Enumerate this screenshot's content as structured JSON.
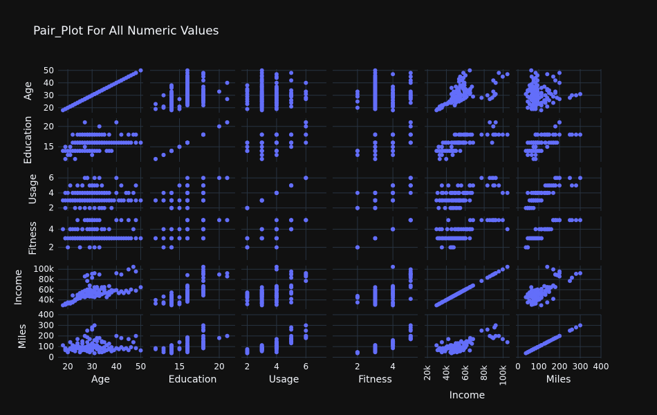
{
  "chart_data": {
    "type": "scatter",
    "title": "Pair_Plot For All Numeric Values",
    "variables": [
      "Age",
      "Education",
      "Usage",
      "Fitness",
      "Income",
      "Miles"
    ],
    "axes": {
      "Age": {
        "range": [
          16,
          51
        ],
        "ticks": [
          20,
          30,
          40,
          50
        ],
        "tick_labels": [
          "20",
          "30",
          "40",
          "50"
        ]
      },
      "Education": {
        "range": [
          11.3,
          22
        ],
        "ticks": [
          15,
          20
        ],
        "tick_labels": [
          "15",
          "20"
        ]
      },
      "Usage": {
        "range": [
          1.6,
          7.4
        ],
        "ticks": [
          2,
          4,
          6
        ],
        "tick_labels": [
          "2",
          "4",
          "6"
        ]
      },
      "Fitness": {
        "range": [
          0.6,
          5.4
        ],
        "ticks": [
          2,
          4
        ],
        "tick_labels": [
          "2",
          "4"
        ]
      },
      "Income": {
        "range": [
          27000,
          107000
        ],
        "ticks": [
          40000,
          60000,
          80000,
          100000
        ],
        "tick_labels": [
          "40k",
          "60k",
          "80k",
          "100k"
        ]
      },
      "Miles": {
        "range": [
          10,
          370
        ],
        "ticks": [
          0,
          100,
          200,
          300,
          400
        ],
        "tick_labels": [
          "0",
          "100",
          "200",
          "300",
          "400"
        ]
      }
    },
    "x_tick_overrides": {
      "Income": {
        "ticks": [
          20000,
          40000,
          60000,
          80000,
          100000
        ],
        "tick_labels": [
          "20k",
          "40k",
          "60k",
          "80k",
          "100k"
        ],
        "range": [
          17000,
          107000
        ]
      },
      "Miles": {
        "ticks": [
          0,
          100,
          200,
          300,
          400
        ],
        "tick_labels": [
          "0",
          "100",
          "200",
          "300",
          "400"
        ],
        "range": [
          -10,
          400
        ]
      }
    },
    "y_tick_overrides": {
      "Miles": {
        "ticks": [
          0,
          100,
          200,
          300,
          400
        ],
        "tick_labels": [
          "0",
          "100",
          "200",
          "300",
          "400"
        ],
        "range": [
          -10,
          400
        ]
      },
      "Income": {
        "ticks": [
          20000,
          40000,
          60000,
          80000,
          100000
        ],
        "tick_labels": [
          "20k",
          "40k",
          "60k",
          "80k",
          "100k"
        ],
        "range": [
          22000,
          107000
        ]
      },
      "Education": {
        "ticks": [
          15,
          20
        ],
        "tick_labels": [
          "15",
          "20"
        ],
        "range": [
          11.3,
          22
        ]
      }
    },
    "marker_color": "#636efa",
    "grid": true,
    "points": [
      [
        18,
        14,
        3,
        4,
        29562,
        112
      ],
      [
        19,
        15,
        2,
        3,
        31836,
        75
      ],
      [
        19,
        14,
        4,
        3,
        30699,
        66
      ],
      [
        19,
        12,
        3,
        3,
        32973,
        85
      ],
      [
        20,
        13,
        4,
        2,
        35247,
        47
      ],
      [
        20,
        14,
        3,
        3,
        32973,
        66
      ],
      [
        21,
        14,
        3,
        3,
        35247,
        75
      ],
      [
        21,
        13,
        3,
        4,
        32973,
        85
      ],
      [
        21,
        15,
        5,
        4,
        35247,
        141
      ],
      [
        22,
        14,
        3,
        3,
        36384,
        85
      ],
      [
        22,
        14,
        3,
        3,
        35247,
        66
      ],
      [
        22,
        16,
        4,
        3,
        36384,
        75
      ],
      [
        23,
        16,
        3,
        3,
        38658,
        85
      ],
      [
        23,
        14,
        3,
        4,
        40932,
        103
      ],
      [
        23,
        16,
        4,
        3,
        39795,
        94
      ],
      [
        23,
        14,
        2,
        3,
        38658,
        56
      ],
      [
        24,
        16,
        3,
        3,
        42069,
        85
      ],
      [
        24,
        14,
        4,
        3,
        44343,
        113
      ],
      [
        24,
        16,
        4,
        4,
        45480,
        113
      ],
      [
        24,
        16,
        5,
        5,
        42069,
        170
      ],
      [
        25,
        14,
        3,
        3,
        43206,
        85
      ],
      [
        25,
        16,
        3,
        3,
        45480,
        75
      ],
      [
        25,
        16,
        4,
        3,
        48891,
        85
      ],
      [
        25,
        18,
        3,
        3,
        53439,
        94
      ],
      [
        25,
        14,
        2,
        2,
        44343,
        47
      ],
      [
        26,
        16,
        3,
        3,
        46617,
        85
      ],
      [
        26,
        16,
        4,
        3,
        48891,
        94
      ],
      [
        26,
        14,
        3,
        3,
        50028,
        66
      ],
      [
        26,
        18,
        4,
        4,
        53439,
        127
      ],
      [
        26,
        16,
        5,
        4,
        52302,
        132
      ],
      [
        27,
        16,
        3,
        3,
        47754,
        75
      ],
      [
        27,
        16,
        2,
        3,
        50028,
        66
      ],
      [
        27,
        14,
        4,
        3,
        45480,
        94
      ],
      [
        27,
        18,
        3,
        3,
        57987,
        85
      ],
      [
        27,
        21,
        6,
        5,
        85906,
        200
      ],
      [
        28,
        16,
        3,
        3,
        51165,
        75
      ],
      [
        28,
        18,
        4,
        4,
        60261,
        141
      ],
      [
        28,
        16,
        4,
        3,
        53439,
        103
      ],
      [
        28,
        14,
        3,
        3,
        47754,
        56
      ],
      [
        28,
        16,
        6,
        5,
        88396,
        188
      ],
      [
        29,
        16,
        3,
        3,
        53439,
        85
      ],
      [
        29,
        18,
        4,
        4,
        61398,
        113
      ],
      [
        29,
        14,
        2,
        2,
        46617,
        47
      ],
      [
        29,
        16,
        5,
        5,
        68220,
        170
      ],
      [
        29,
        18,
        3,
        3,
        54576,
        85
      ],
      [
        30,
        16,
        3,
        3,
        52302,
        94
      ],
      [
        30,
        14,
        4,
        3,
        46617,
        85
      ],
      [
        30,
        18,
        5,
        5,
        90886,
        280
      ],
      [
        30,
        16,
        4,
        4,
        57987,
        132
      ],
      [
        30,
        13,
        3,
        3,
        46617,
        66
      ],
      [
        31,
        16,
        3,
        3,
        53439,
        94
      ],
      [
        31,
        18,
        4,
        3,
        59124,
        113
      ],
      [
        31,
        16,
        5,
        4,
        64809,
        160
      ],
      [
        31,
        14,
        2,
        2,
        45480,
        38
      ],
      [
        31,
        18,
        6,
        5,
        92131,
        300
      ],
      [
        32,
        16,
        3,
        3,
        53439,
        75
      ],
      [
        32,
        14,
        4,
        3,
        48891,
        85
      ],
      [
        32,
        18,
        4,
        4,
        61398,
        150
      ],
      [
        32,
        16,
        5,
        5,
        65220,
        180
      ],
      [
        33,
        16,
        3,
        3,
        53439,
        66
      ],
      [
        33,
        18,
        3,
        3,
        59124,
        85
      ],
      [
        33,
        16,
        4,
        3,
        52302,
        94
      ],
      [
        33,
        14,
        2,
        2,
        47754,
        47
      ],
      [
        34,
        16,
        3,
        3,
        51165,
        85
      ],
      [
        34,
        18,
        4,
        4,
        62535,
        141
      ],
      [
        34,
        16,
        5,
        4,
        64809,
        150
      ],
      [
        35,
        16,
        3,
        3,
        57987,
        75
      ],
      [
        35,
        18,
        4,
        3,
        60261,
        94
      ],
      [
        35,
        16,
        2,
        3,
        53439,
        56
      ],
      [
        36,
        16,
        4,
        3,
        53439,
        113
      ],
      [
        36,
        14,
        3,
        3,
        45480,
        66
      ],
      [
        37,
        16,
        3,
        3,
        55713,
        85
      ],
      [
        37,
        18,
        4,
        4,
        67083,
        127
      ],
      [
        38,
        16,
        3,
        3,
        59124,
        94
      ],
      [
        38,
        14,
        2,
        3,
        54576,
        56
      ],
      [
        39,
        16,
        3,
        3,
        57987,
        66
      ],
      [
        40,
        16,
        4,
        3,
        59124,
        85
      ],
      [
        40,
        21,
        6,
        5,
        92131,
        200
      ],
      [
        41,
        16,
        3,
        3,
        53439,
        75
      ],
      [
        42,
        16,
        3,
        3,
        56850,
        94
      ],
      [
        42,
        18,
        5,
        5,
        89641,
        180
      ],
      [
        43,
        16,
        3,
        3,
        53439,
        75
      ],
      [
        44,
        16,
        4,
        3,
        57987,
        85
      ],
      [
        45,
        16,
        3,
        3,
        54576,
        66
      ],
      [
        45,
        18,
        4,
        5,
        99601,
        170
      ],
      [
        46,
        16,
        3,
        3,
        60261,
        94
      ],
      [
        47,
        18,
        4,
        4,
        104581,
        141
      ],
      [
        48,
        18,
        5,
        5,
        95508,
        200
      ],
      [
        48,
        16,
        3,
        3,
        57987,
        85
      ],
      [
        50,
        16,
        3,
        3,
        64809,
        64
      ],
      [
        22,
        18,
        4,
        4,
        48891,
        113
      ],
      [
        24,
        18,
        4,
        4,
        50028,
        132
      ],
      [
        26,
        18,
        5,
        4,
        55713,
        150
      ],
      [
        28,
        18,
        6,
        5,
        77191,
        250
      ],
      [
        30,
        18,
        5,
        5,
        83416,
        260
      ],
      [
        33,
        20,
        6,
        5,
        89641,
        180
      ],
      [
        35,
        18,
        4,
        4,
        65220,
        141
      ],
      [
        27,
        15,
        3,
        3,
        45480,
        85
      ],
      [
        29,
        14,
        3,
        3,
        50028,
        75
      ],
      [
        32,
        16,
        3,
        4,
        52302,
        113
      ],
      [
        25,
        16,
        3,
        3,
        49265,
        85
      ],
      [
        23,
        12,
        3,
        3,
        39795,
        75
      ],
      [
        34,
        16,
        2,
        3,
        51165,
        47
      ],
      [
        37,
        14,
        3,
        3,
        50028,
        75
      ],
      [
        31,
        16,
        3,
        3,
        54576,
        94
      ]
    ]
  }
}
